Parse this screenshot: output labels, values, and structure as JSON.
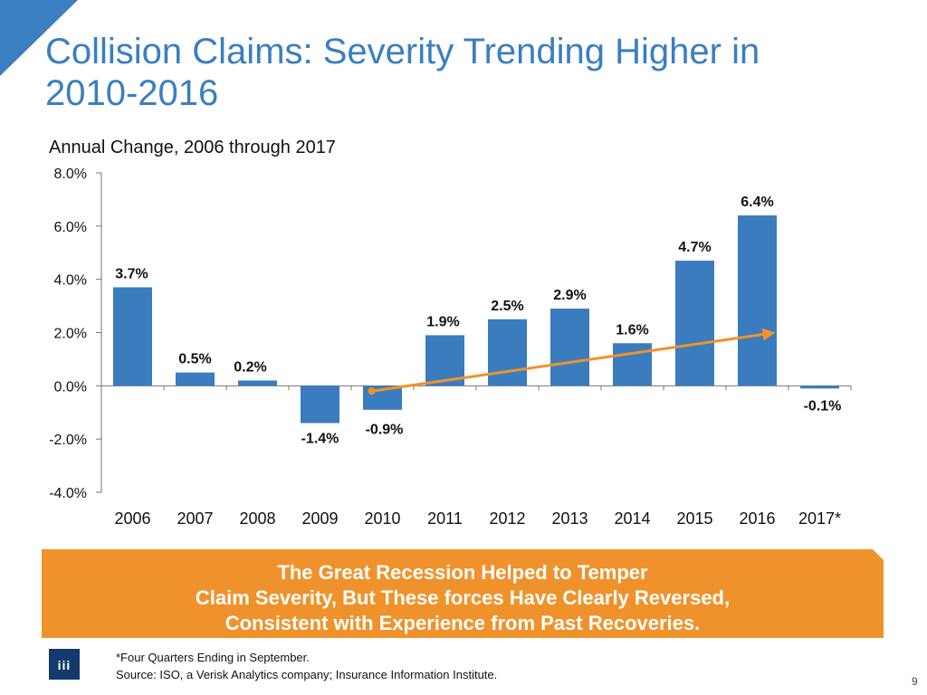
{
  "title": "Collision Claims: Severity Trending Higher in 2010-2016",
  "subtitle": "Annual Change, 2006 through 2017",
  "banner": {
    "lines": [
      "The Great Recession Helped to Temper",
      "Claim Severity, But These forces Have Clearly Reversed,",
      "Consistent with Experience from Past Recoveries."
    ]
  },
  "logo": {
    "text": "iii"
  },
  "footnote": {
    "note": "*Four Quarters Ending in September.",
    "source": "Source: ISO, a Verisk Analytics company; Insurance Information Institute."
  },
  "page_number": "9",
  "colors": {
    "title": "#3a7fc0",
    "bar": "#3a7cbe",
    "trend": "#f0922b",
    "banner": "#f0922b",
    "corner": "#3a7fc0",
    "logo": "#123a6b"
  },
  "chart_data": {
    "type": "bar",
    "categories": [
      "2006",
      "2007",
      "2008",
      "2009",
      "2010",
      "2011",
      "2012",
      "2013",
      "2014",
      "2015",
      "2016",
      "2017*"
    ],
    "values": [
      3.7,
      0.5,
      0.2,
      -1.4,
      -0.9,
      1.9,
      2.5,
      2.9,
      1.6,
      4.7,
      6.4,
      -0.1
    ],
    "data_labels": [
      "3.7%",
      "0.5%",
      "0.2%",
      "-1.4%",
      "-0.9%",
      "1.9%",
      "2.5%",
      "2.9%",
      "1.6%",
      "4.7%",
      "6.4%",
      "-0.1%"
    ],
    "ylim": [
      -4,
      8
    ],
    "yticks": [
      8,
      6,
      4,
      2,
      0,
      -2,
      -4
    ],
    "ytick_labels": [
      "8.0%",
      "6.0%",
      "4.0%",
      "2.0%",
      "0.0%",
      "-2.0%",
      "-4.0%"
    ],
    "title": "Annual Change, 2006 through 2017",
    "xlabel": "",
    "ylabel": "",
    "grid": false,
    "trend_arrow": {
      "from": {
        "category": "2010",
        "value": -0.2
      },
      "to": {
        "category": "2016",
        "value": 2.0
      }
    }
  }
}
